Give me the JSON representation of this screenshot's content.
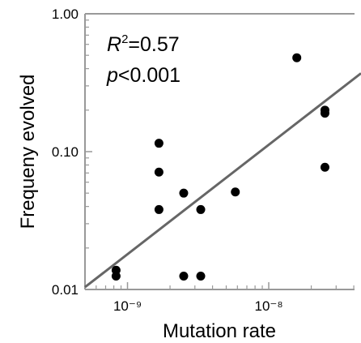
{
  "chart_data": {
    "type": "scatter",
    "xlabel": "Mutation rate",
    "ylabel": "Frequeny evolved",
    "xscale": "log",
    "yscale": "log",
    "xlim": [
      5e-10,
      4.5e-08
    ],
    "ylim": [
      0.01,
      1.0
    ],
    "x_tick_values": [
      1e-09,
      1e-08
    ],
    "x_tick_labels": [
      "10⁻⁹",
      "10⁻⁸"
    ],
    "y_tick_values": [
      0.01,
      0.1,
      1.0
    ],
    "y_tick_labels": [
      "0.01",
      "0.10",
      "1.00"
    ],
    "grid": false,
    "legend": "none",
    "annotations": {
      "r2_symbol": "R",
      "r2_sup": "2",
      "r2_rest": "=0.57",
      "p_symbol": "p",
      "p_rest": "<0.001"
    },
    "points": [
      {
        "x": 8.3e-10,
        "y": 0.0138
      },
      {
        "x": 8.3e-10,
        "y": 0.0125
      },
      {
        "x": 1.67e-09,
        "y": 0.115
      },
      {
        "x": 1.67e-09,
        "y": 0.071
      },
      {
        "x": 1.67e-09,
        "y": 0.038
      },
      {
        "x": 2.5e-09,
        "y": 0.05
      },
      {
        "x": 2.5e-09,
        "y": 0.0125
      },
      {
        "x": 3.3e-09,
        "y": 0.038
      },
      {
        "x": 3.3e-09,
        "y": 0.0125
      },
      {
        "x": 5.8e-09,
        "y": 0.051
      },
      {
        "x": 1.58e-08,
        "y": 0.48
      },
      {
        "x": 2.5e-08,
        "y": 0.2
      },
      {
        "x": 2.5e-08,
        "y": 0.19
      },
      {
        "x": 2.5e-08,
        "y": 0.077
      }
    ],
    "fit_line": {
      "points": [
        {
          "x": 5e-10,
          "y": 0.0104
        },
        {
          "x": 4.5e-08,
          "y": 0.37
        }
      ],
      "color": "#666666"
    },
    "point_color": "#000000",
    "frame_color": "#999999"
  }
}
